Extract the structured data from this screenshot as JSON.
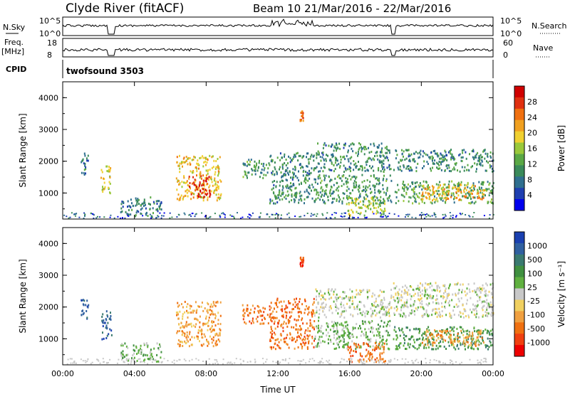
{
  "header": {
    "station": "Clyde River (fitACF)",
    "beam_info": "Beam 10  21/Mar/2016 - 22/Mar/2016"
  },
  "panels": {
    "nsky_label": "N.Sky",
    "nsearch_label": "N.Search",
    "nsky_ticks": [
      "10^5",
      "10^0"
    ],
    "nsearch_ticks": [
      "10^5",
      "10^0"
    ],
    "freq_label": "Freq.",
    "freq_unit": "[MHz]",
    "freq_ticks": [
      "18",
      "8"
    ],
    "nave_label": "Nave",
    "nave_ticks": [
      "60",
      "0"
    ],
    "cpid_label": "CPID",
    "cpid_value": "twofsound 3503"
  },
  "colors": {
    "power": [
      "#0000ee",
      "#1f3fb0",
      "#2f6f8f",
      "#3a8a5a",
      "#5aa845",
      "#9ac83a",
      "#f0d030",
      "#f0a020",
      "#f07010",
      "#e03010",
      "#d00000"
    ],
    "velocity": [
      "#ee0000",
      "#f04010",
      "#f07010",
      "#f0a040",
      "#f0d060",
      "#c8c8c8",
      "#60b040",
      "#409040",
      "#3a7a70",
      "#3060a0",
      "#1a40b0"
    ]
  },
  "chart_data": [
    {
      "type": "heatmap",
      "title": "",
      "xlabel": "Time UT",
      "ylabel": "Slant Range [km]",
      "x_ticks": [
        "00:00",
        "04:00",
        "08:00",
        "12:00",
        "16:00",
        "20:00",
        "00:00"
      ],
      "y_ticks": [
        "1000",
        "2000",
        "3000",
        "4000"
      ],
      "xlim": [
        0,
        24
      ],
      "ylim": [
        180,
        4500
      ],
      "colorbar_label": "Power [dB]",
      "colorbar_ticks": [
        "4",
        "8",
        "12",
        "16",
        "20",
        "24",
        "28"
      ],
      "clim": [
        0,
        32
      ],
      "regions": [
        {
          "t0": 1.0,
          "t1": 1.4,
          "r0": 1600,
          "r1": 2300,
          "level": 8
        },
        {
          "t0": 2.1,
          "t1": 2.7,
          "r0": 1000,
          "r1": 1900,
          "level": 18
        },
        {
          "t0": 3.2,
          "t1": 5.5,
          "r0": 300,
          "r1": 900,
          "level": 8
        },
        {
          "t0": 6.3,
          "t1": 8.8,
          "r0": 800,
          "r1": 2200,
          "level": 20
        },
        {
          "t0": 7.0,
          "t1": 8.2,
          "r0": 900,
          "r1": 1600,
          "level": 30
        },
        {
          "t0": 10.0,
          "t1": 11.5,
          "r0": 1500,
          "r1": 2100,
          "level": 10
        },
        {
          "t0": 11.5,
          "t1": 14.0,
          "r0": 700,
          "r1": 2300,
          "level": 9
        },
        {
          "t0": 13.2,
          "t1": 13.4,
          "r0": 3300,
          "r1": 3600,
          "level": 26
        },
        {
          "t0": 14.0,
          "t1": 18.3,
          "r0": 1700,
          "r1": 2600,
          "level": 9
        },
        {
          "t0": 14.0,
          "t1": 18.3,
          "r0": 700,
          "r1": 1600,
          "level": 10
        },
        {
          "t0": 15.8,
          "t1": 18.0,
          "r0": 300,
          "r1": 900,
          "level": 16
        },
        {
          "t0": 18.4,
          "t1": 24.0,
          "r0": 1700,
          "r1": 2400,
          "level": 9
        },
        {
          "t0": 18.4,
          "t1": 24.0,
          "r0": 700,
          "r1": 1400,
          "level": 12
        },
        {
          "t0": 20.0,
          "t1": 23.5,
          "r0": 800,
          "r1": 1300,
          "level": 22
        }
      ]
    },
    {
      "type": "heatmap",
      "title": "",
      "xlabel": "Time UT",
      "ylabel": "Slant Range [km]",
      "x_ticks": [
        "00:00",
        "04:00",
        "08:00",
        "12:00",
        "16:00",
        "20:00",
        "00:00"
      ],
      "y_ticks": [
        "1000",
        "2000",
        "3000",
        "4000"
      ],
      "xlim": [
        0,
        24
      ],
      "ylim": [
        180,
        4500
      ],
      "colorbar_label": "Velocity [m s⁻¹]",
      "colorbar_ticks": [
        "1000",
        "500",
        "100",
        "25",
        "-25",
        "-100",
        "-500",
        "-1000"
      ],
      "regions": [
        {
          "t0": 1.0,
          "t1": 1.4,
          "r0": 1600,
          "r1": 2300,
          "level": 9
        },
        {
          "t0": 2.1,
          "t1": 2.7,
          "r0": 1000,
          "r1": 1900,
          "level": 9
        },
        {
          "t0": 3.2,
          "t1": 5.5,
          "r0": 300,
          "r1": 900,
          "level": 6
        },
        {
          "t0": 6.3,
          "t1": 8.8,
          "r0": 800,
          "r1": 2200,
          "level": 3
        },
        {
          "t0": 10.0,
          "t1": 11.5,
          "r0": 1500,
          "r1": 2100,
          "level": 2
        },
        {
          "t0": 11.5,
          "t1": 14.0,
          "r0": 700,
          "r1": 2300,
          "level": 2
        },
        {
          "t0": 13.2,
          "t1": 13.4,
          "r0": 3300,
          "r1": 3600,
          "level": 1
        },
        {
          "t0": 14.0,
          "t1": 18.3,
          "r0": 1700,
          "r1": 2600,
          "level": 5
        },
        {
          "t0": 14.0,
          "t1": 18.3,
          "r0": 700,
          "r1": 1600,
          "level": 6
        },
        {
          "t0": 15.8,
          "t1": 18.0,
          "r0": 300,
          "r1": 900,
          "level": 2
        },
        {
          "t0": 18.4,
          "t1": 24.0,
          "r0": 1700,
          "r1": 2800,
          "level": 5
        },
        {
          "t0": 18.4,
          "t1": 24.0,
          "r0": 700,
          "r1": 1400,
          "level": 7
        },
        {
          "t0": 20.0,
          "t1": 23.5,
          "r0": 800,
          "r1": 1300,
          "level": 3
        }
      ]
    }
  ]
}
